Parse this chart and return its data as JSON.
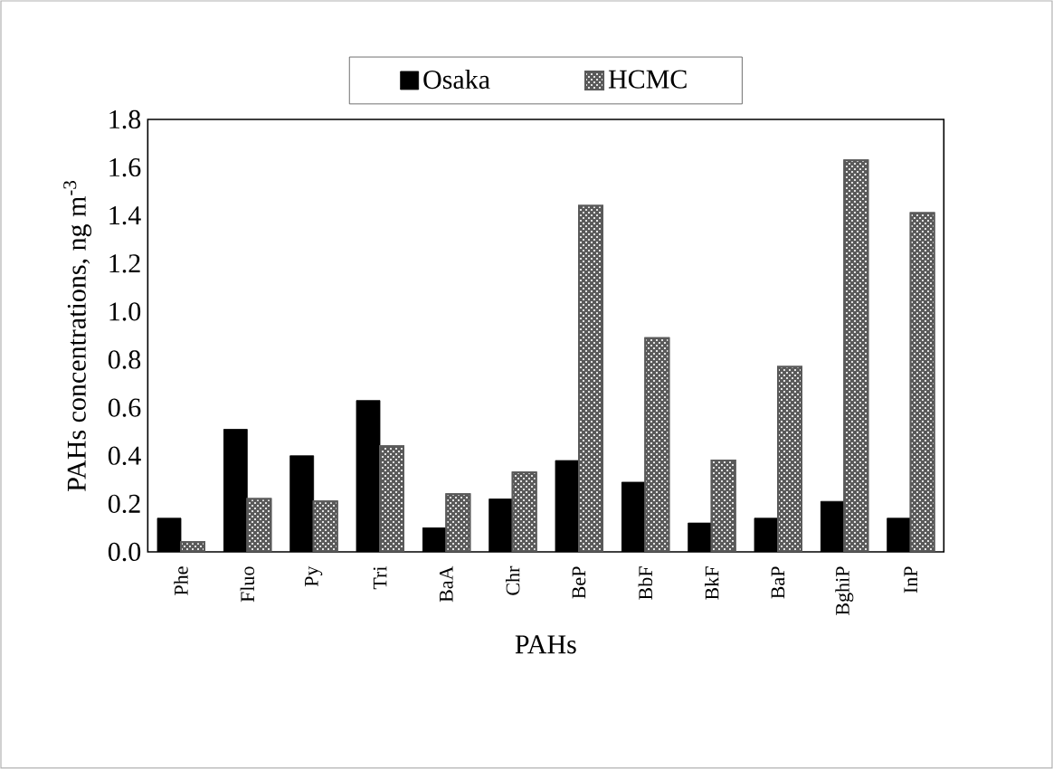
{
  "chart_data": {
    "type": "bar",
    "xlabel": "PAHs",
    "ylabel": "PAHs concentrations, ng m$^{-3}$",
    "categories": [
      "Phe",
      "Fluo",
      "Py",
      "Tri",
      "BaA",
      "Chr",
      "BeP",
      "BbF",
      "BkF",
      "BaP",
      "BghiP",
      "InP"
    ],
    "series": [
      {
        "name": "Osaka",
        "color": "#000000",
        "values": [
          0.14,
          0.51,
          0.4,
          0.63,
          0.1,
          0.22,
          0.38,
          0.29,
          0.12,
          0.14,
          0.21,
          0.14
        ]
      },
      {
        "name": "HCMC",
        "color": "#5a5a5a",
        "values": [
          0.04,
          0.22,
          0.21,
          0.44,
          0.24,
          0.33,
          1.44,
          0.89,
          0.38,
          0.77,
          1.63,
          1.41
        ]
      }
    ],
    "ylim": [
      0,
      1.8
    ],
    "yticks": [
      {
        "value": 0,
        "label": "0.0"
      },
      {
        "value": 0.2,
        "label": "0.2"
      },
      {
        "value": 0.4,
        "label": "0.4"
      },
      {
        "value": 0.6,
        "label": "0.6"
      },
      {
        "value": 0.8,
        "label": "0.8"
      },
      {
        "value": 1.0,
        "label": "1.0"
      },
      {
        "value": 1.2,
        "label": "1.2"
      },
      {
        "value": 1.4,
        "label": "1.4"
      },
      {
        "value": 1.6,
        "label": "1.6"
      },
      {
        "value": 1.8,
        "label": "1.8"
      }
    ],
    "legend": "top"
  }
}
